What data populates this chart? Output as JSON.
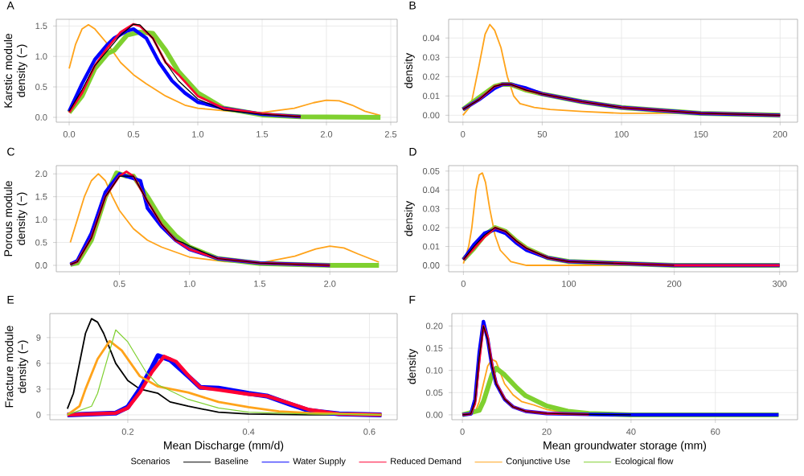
{
  "chart_data": [
    {
      "type": "line",
      "title": "A",
      "ylabel": "Karstic module density (−)",
      "xlim": [
        -0.1,
        2.55
      ],
      "ylim": [
        -0.08,
        1.61
      ],
      "grid": true,
      "xticks": [
        {
          "value": 0,
          "label": "0.0"
        },
        0.5,
        {
          "value": 1,
          "label": "1.0"
        },
        1.5,
        {
          "value": 2,
          "label": "2.0"
        },
        2.5
      ],
      "yticks": [
        {
          "value": 0,
          "label": "0.0"
        },
        0.5,
        {
          "value": 1,
          "label": "1.0"
        },
        1.5
      ],
      "series": [
        {
          "color": "#ffa31a",
          "x": [
            0.0,
            0.05,
            0.1,
            0.15,
            0.2,
            0.3,
            0.4,
            0.5,
            0.6,
            0.75,
            0.9,
            1.0,
            1.25,
            1.5,
            1.75,
            1.9,
            2.0,
            2.1,
            2.2,
            2.3,
            2.42
          ],
          "values": [
            0.8,
            1.2,
            1.45,
            1.52,
            1.45,
            1.2,
            0.9,
            0.7,
            0.55,
            0.35,
            0.2,
            0.15,
            0.1,
            0.08,
            0.15,
            0.24,
            0.28,
            0.27,
            0.2,
            0.1,
            0.03
          ]
        },
        {
          "color": "#7fd02f",
          "x": [
            0.0,
            0.1,
            0.2,
            0.3,
            0.35,
            0.45,
            0.55,
            0.65,
            0.75,
            0.85,
            1.0,
            1.2,
            1.5,
            1.8,
            2.42
          ],
          "values": [
            0.08,
            0.35,
            0.8,
            1.05,
            1.1,
            1.35,
            1.4,
            1.38,
            1.1,
            0.75,
            0.4,
            0.15,
            0.04,
            0.01,
            0.0
          ]
        },
        {
          "color": "#0000ff",
          "x": [
            0.0,
            0.1,
            0.2,
            0.3,
            0.35,
            0.45,
            0.5,
            0.6,
            0.7,
            0.8,
            0.9,
            1.0,
            1.2,
            1.5,
            1.8
          ],
          "values": [
            0.1,
            0.55,
            0.95,
            1.2,
            1.3,
            1.42,
            1.45,
            1.3,
            0.9,
            0.6,
            0.4,
            0.25,
            0.15,
            0.05,
            0.01
          ]
        },
        {
          "color": "#ff0033",
          "x": [
            0.0,
            0.1,
            0.2,
            0.3,
            0.4,
            0.5,
            0.55,
            0.65,
            0.75,
            0.85,
            1.0,
            1.2,
            1.5,
            1.8
          ],
          "values": [
            0.08,
            0.4,
            0.85,
            1.15,
            1.4,
            1.53,
            1.5,
            1.3,
            0.9,
            0.7,
            0.35,
            0.15,
            0.06,
            0.01
          ]
        },
        {
          "color": "#000000",
          "x": [
            0.0,
            0.1,
            0.2,
            0.3,
            0.4,
            0.5,
            0.55,
            0.65,
            0.75,
            0.85,
            1.0,
            1.2,
            1.5,
            1.8
          ],
          "values": [
            0.1,
            0.45,
            0.85,
            1.1,
            1.35,
            1.53,
            1.52,
            1.3,
            0.9,
            0.6,
            0.3,
            0.12,
            0.05,
            0.01
          ]
        }
      ]
    },
    {
      "type": "line",
      "title": "B",
      "ylabel": "density",
      "xlim": [
        -9,
        211
      ],
      "ylim": [
        -0.0036,
        0.0497
      ],
      "grid": true,
      "xticks": [
        0,
        50,
        100,
        150,
        200
      ],
      "yticks": [
        {
          "value": 0,
          "label": "0.00"
        },
        0.01,
        0.02,
        0.03,
        0.04
      ],
      "series": [
        {
          "color": "#ffa31a",
          "x": [
            0,
            5,
            10,
            14,
            17,
            20,
            24,
            28,
            32,
            36,
            45,
            55,
            75,
            100,
            125,
            150
          ],
          "values": [
            0.0,
            0.005,
            0.025,
            0.042,
            0.047,
            0.044,
            0.035,
            0.02,
            0.01,
            0.006,
            0.004,
            0.003,
            0.002,
            0.001,
            0.001,
            0.001
          ]
        },
        {
          "color": "#7fd02f",
          "x": [
            0,
            10,
            20,
            25,
            30,
            40,
            50,
            75,
            100,
            150,
            200
          ],
          "values": [
            0.003,
            0.009,
            0.015,
            0.016,
            0.016,
            0.013,
            0.011,
            0.007,
            0.004,
            0.001,
            0.0
          ]
        },
        {
          "color": "#0000ff",
          "x": [
            0,
            10,
            20,
            25,
            30,
            40,
            50,
            75,
            100,
            150,
            200
          ],
          "values": [
            0.003,
            0.008,
            0.014,
            0.016,
            0.016,
            0.014,
            0.011,
            0.007,
            0.004,
            0.001,
            0.0
          ]
        },
        {
          "color": "#ff0033",
          "x": [
            0,
            10,
            20,
            25,
            30,
            40,
            50,
            75,
            100,
            150,
            200
          ],
          "values": [
            0.003,
            0.008,
            0.015,
            0.016,
            0.016,
            0.013,
            0.011,
            0.007,
            0.004,
            0.001,
            0.0
          ]
        },
        {
          "color": "#000000",
          "x": [
            0,
            10,
            20,
            25,
            30,
            40,
            50,
            75,
            100,
            150,
            200
          ],
          "values": [
            0.003,
            0.008,
            0.015,
            0.016,
            0.016,
            0.013,
            0.011,
            0.007,
            0.004,
            0.001,
            0.0
          ]
        }
      ]
    },
    {
      "type": "line",
      "title": "C",
      "ylabel": "Porous module density (−)",
      "xlim": [
        0.05,
        2.48
      ],
      "ylim": [
        -0.14,
        2.18
      ],
      "grid": true,
      "xticks": [
        0.5,
        {
          "value": 1,
          "label": "1.0"
        },
        1.5,
        {
          "value": 2,
          "label": "2.0"
        }
      ],
      "yticks": [
        {
          "value": 0,
          "label": "0.0"
        },
        0.5,
        {
          "value": 1,
          "label": "1.0"
        },
        1.5,
        {
          "value": 2,
          "label": "2.0"
        }
      ],
      "series": [
        {
          "color": "#ffa31a",
          "x": [
            0.15,
            0.2,
            0.25,
            0.3,
            0.35,
            0.4,
            0.45,
            0.5,
            0.6,
            0.7,
            0.8,
            1.0,
            1.25,
            1.5,
            1.75,
            1.9,
            2.0,
            2.1,
            2.2,
            2.35
          ],
          "values": [
            0.5,
            1.0,
            1.5,
            1.85,
            2.0,
            1.85,
            1.5,
            1.2,
            0.8,
            0.55,
            0.4,
            0.18,
            0.08,
            0.05,
            0.2,
            0.36,
            0.42,
            0.38,
            0.25,
            0.07
          ]
        },
        {
          "color": "#7fd02f",
          "x": [
            0.15,
            0.2,
            0.3,
            0.4,
            0.48,
            0.55,
            0.6,
            0.7,
            0.8,
            0.9,
            1.0,
            1.2,
            1.5,
            2.0,
            2.35
          ],
          "values": [
            0.02,
            0.05,
            0.55,
            1.5,
            2.02,
            1.95,
            1.95,
            1.5,
            1.0,
            0.65,
            0.4,
            0.15,
            0.04,
            0.0,
            0.0
          ]
        },
        {
          "color": "#0000ff",
          "x": [
            0.15,
            0.2,
            0.3,
            0.4,
            0.5,
            0.55,
            0.65,
            0.7,
            0.8,
            0.9,
            1.0,
            1.2,
            1.5,
            2.0
          ],
          "values": [
            0.02,
            0.1,
            0.7,
            1.6,
            2.0,
            1.95,
            1.85,
            1.25,
            0.85,
            0.55,
            0.35,
            0.15,
            0.05,
            0.0
          ]
        },
        {
          "color": "#ff0033",
          "x": [
            0.15,
            0.2,
            0.3,
            0.4,
            0.5,
            0.55,
            0.6,
            0.7,
            0.8,
            0.9,
            1.0,
            1.2,
            1.5,
            2.0
          ],
          "values": [
            0.02,
            0.08,
            0.6,
            1.5,
            1.95,
            2.05,
            1.95,
            1.4,
            0.9,
            0.55,
            0.35,
            0.15,
            0.05,
            0.0
          ]
        },
        {
          "color": "#000000",
          "x": [
            0.15,
            0.2,
            0.3,
            0.4,
            0.5,
            0.6,
            0.7,
            0.8,
            0.9,
            0.95,
            1.0,
            1.2,
            1.5,
            2.0
          ],
          "values": [
            0.02,
            0.08,
            0.6,
            1.5,
            1.95,
            1.95,
            1.4,
            0.9,
            0.55,
            0.5,
            0.42,
            0.15,
            0.05,
            0.0
          ]
        }
      ]
    },
    {
      "type": "line",
      "title": "D",
      "ylabel": "density",
      "xlim": [
        -14,
        317
      ],
      "ylim": [
        -0.0034,
        0.0529
      ],
      "grid": true,
      "xticks": [
        0,
        100,
        200,
        300
      ],
      "yticks": [
        {
          "value": 0,
          "label": "0.00"
        },
        0.01,
        0.02,
        0.03,
        0.04,
        0.05
      ],
      "series": [
        {
          "color": "#ffa31a",
          "x": [
            0,
            5,
            8,
            12,
            15,
            18,
            21,
            25,
            30,
            35,
            45,
            60,
            100,
            200,
            300
          ],
          "values": [
            0.001,
            0.01,
            0.02,
            0.04,
            0.048,
            0.049,
            0.044,
            0.03,
            0.016,
            0.008,
            0.002,
            0.0,
            0.0,
            0.0,
            0.0
          ]
        },
        {
          "color": "#7fd02f",
          "x": [
            0,
            10,
            20,
            30,
            40,
            50,
            60,
            80,
            100,
            150,
            200,
            300
          ],
          "values": [
            0.003,
            0.009,
            0.016,
            0.02,
            0.018,
            0.013,
            0.009,
            0.004,
            0.002,
            0.001,
            0.0,
            0.0
          ]
        },
        {
          "color": "#0000ff",
          "x": [
            0,
            10,
            20,
            30,
            40,
            50,
            60,
            80,
            100,
            150,
            200,
            300
          ],
          "values": [
            0.003,
            0.011,
            0.017,
            0.019,
            0.017,
            0.012,
            0.008,
            0.004,
            0.002,
            0.001,
            0.0,
            0.0
          ]
        },
        {
          "color": "#ff0033",
          "x": [
            0,
            10,
            20,
            30,
            40,
            50,
            60,
            80,
            100,
            150,
            200,
            300
          ],
          "values": [
            0.003,
            0.009,
            0.015,
            0.02,
            0.018,
            0.013,
            0.009,
            0.004,
            0.002,
            0.001,
            0.0,
            0.0
          ]
        },
        {
          "color": "#000000",
          "x": [
            0,
            10,
            20,
            30,
            40,
            50,
            60,
            80,
            100,
            150,
            200
          ],
          "values": [
            0.003,
            0.01,
            0.016,
            0.02,
            0.018,
            0.013,
            0.009,
            0.004,
            0.002,
            0.001,
            0.0
          ]
        }
      ]
    },
    {
      "type": "line",
      "title": "E",
      "xlabel": "Mean Discharge (mm/d)",
      "ylabel": "Fracture module density (−)",
      "legend_title": "Scenarios",
      "legend": "bottom",
      "xlim": [
        0.071,
        0.646
      ],
      "ylim": [
        -0.57,
        11.8
      ],
      "grid": true,
      "xticks": [
        0.2,
        0.4,
        0.6
      ],
      "yticks": [
        0,
        3,
        6,
        9
      ],
      "series": [
        {
          "name": "Baseline",
          "color": "#000000",
          "x": [
            0.1,
            0.11,
            0.12,
            0.13,
            0.14,
            0.15,
            0.16,
            0.18,
            0.2,
            0.22,
            0.25,
            0.27,
            0.3,
            0.35,
            0.4,
            0.5,
            0.62
          ],
          "values": [
            0.7,
            2.5,
            6.0,
            9.5,
            11.2,
            10.8,
            9.5,
            6.0,
            4.0,
            3.0,
            2.5,
            1.5,
            1.0,
            0.3,
            0.1,
            0.0,
            0.0
          ]
        },
        {
          "name": "Water Supply",
          "color": "#0000ff",
          "x": [
            0.1,
            0.18,
            0.2,
            0.22,
            0.24,
            0.25,
            0.27,
            0.3,
            0.32,
            0.35,
            0.4,
            0.43,
            0.47,
            0.5,
            0.55,
            0.62
          ],
          "values": [
            0.0,
            0.2,
            0.9,
            3.0,
            5.5,
            6.9,
            6.4,
            4.5,
            3.2,
            3.1,
            2.5,
            2.2,
            1.2,
            0.5,
            0.1,
            0.0
          ]
        },
        {
          "name": "Reduced Demand",
          "color": "#ff0033",
          "x": [
            0.1,
            0.18,
            0.2,
            0.22,
            0.24,
            0.26,
            0.28,
            0.3,
            0.32,
            0.35,
            0.4,
            0.43,
            0.47,
            0.5,
            0.55,
            0.62
          ],
          "values": [
            0.0,
            0.2,
            0.8,
            2.6,
            5.0,
            6.8,
            6.2,
            4.6,
            3.2,
            2.9,
            2.4,
            2.2,
            1.3,
            0.6,
            0.1,
            0.0
          ]
        },
        {
          "name": "Conjunctive Use",
          "color": "#ffa31a",
          "x": [
            0.1,
            0.12,
            0.13,
            0.15,
            0.17,
            0.19,
            0.22,
            0.25,
            0.3,
            0.35,
            0.4,
            0.45,
            0.5,
            0.62
          ],
          "values": [
            0.0,
            1.0,
            3.0,
            6.5,
            8.6,
            7.5,
            4.5,
            3.3,
            2.6,
            1.5,
            0.9,
            0.4,
            0.2,
            0.0
          ]
        },
        {
          "name": "Ecological flow",
          "color": "#7fd02f",
          "x": [
            0.1,
            0.14,
            0.15,
            0.16,
            0.18,
            0.2,
            0.23,
            0.25,
            0.3,
            0.35,
            0.4,
            0.5,
            0.62
          ],
          "values": [
            0.0,
            1.0,
            2.5,
            5.0,
            9.9,
            8.5,
            5.0,
            3.5,
            1.8,
            0.8,
            0.3,
            0.1,
            0.0
          ]
        }
      ]
    },
    {
      "type": "line",
      "title": "F",
      "xlabel": "Mean groundwater storage (mm)",
      "ylabel": "density",
      "xlim": [
        -2.5,
        79.5
      ],
      "ylim": [
        -0.011,
        0.228
      ],
      "grid": true,
      "xticks": [
        0,
        20,
        40,
        60
      ],
      "yticks": [
        {
          "value": 0,
          "label": "0.00"
        },
        0.05,
        {
          "value": 0.1,
          "label": "0.10"
        },
        0.15,
        {
          "value": 0.2,
          "label": "0.20"
        }
      ],
      "series": [
        {
          "color": "#ffa31a",
          "x": [
            0,
            3,
            4,
            5,
            6,
            7,
            8,
            10,
            12,
            14,
            17,
            20,
            25,
            30
          ],
          "values": [
            0.0,
            0.005,
            0.03,
            0.07,
            0.11,
            0.125,
            0.12,
            0.07,
            0.045,
            0.03,
            0.022,
            0.012,
            0.004,
            0.001
          ]
        },
        {
          "color": "#7fd02f",
          "x": [
            0,
            4,
            5,
            6,
            7,
            8,
            10,
            13,
            15,
            20,
            25,
            30,
            40,
            75
          ],
          "values": [
            0.0,
            0.01,
            0.03,
            0.06,
            0.09,
            0.105,
            0.09,
            0.06,
            0.043,
            0.02,
            0.008,
            0.003,
            0.0,
            0.0
          ]
        },
        {
          "color": "#0000ff",
          "x": [
            0,
            2,
            3,
            4,
            5,
            6,
            7,
            8,
            10,
            12,
            15,
            20,
            30,
            40,
            75
          ],
          "values": [
            0.0,
            0.002,
            0.035,
            0.14,
            0.21,
            0.17,
            0.11,
            0.07,
            0.035,
            0.018,
            0.008,
            0.003,
            0.001,
            0.0,
            0.0
          ]
        },
        {
          "color": "#ff0033",
          "x": [
            0,
            2,
            3,
            4,
            5,
            6,
            7,
            8,
            10,
            12,
            15,
            20,
            30
          ],
          "values": [
            0.0,
            0.002,
            0.025,
            0.12,
            0.2,
            0.175,
            0.115,
            0.072,
            0.036,
            0.018,
            0.008,
            0.003,
            0.001
          ]
        },
        {
          "color": "#000000",
          "x": [
            0,
            2,
            3,
            4,
            5,
            6,
            7,
            8,
            10,
            12,
            15,
            20,
            30,
            40
          ],
          "values": [
            0.0,
            0.002,
            0.03,
            0.13,
            0.2,
            0.17,
            0.11,
            0.07,
            0.035,
            0.018,
            0.008,
            0.003,
            0.001,
            0.0
          ]
        }
      ]
    }
  ]
}
